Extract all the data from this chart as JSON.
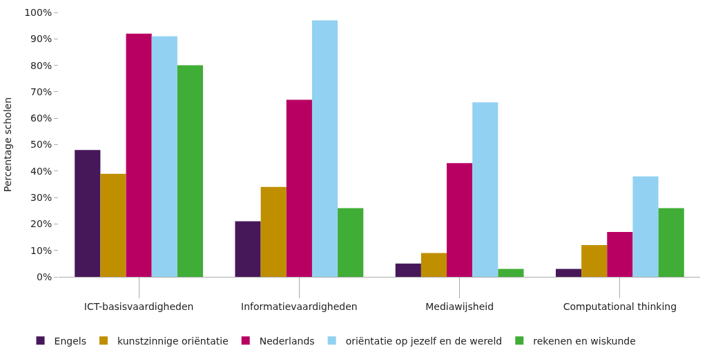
{
  "chart_data": {
    "type": "bar",
    "ylabel": "Percentage scholen",
    "categories": [
      "ICT-basisvaardigheden",
      "Informatievaardigheden",
      "Mediawijsheid",
      "Computational thinking"
    ],
    "series": [
      {
        "name": "Engels",
        "color": "#46185a",
        "values": [
          48,
          21,
          5,
          3
        ]
      },
      {
        "name": "kunstzinnige oriëntatie",
        "color": "#c08f00",
        "values": [
          39,
          34,
          9,
          12
        ]
      },
      {
        "name": "Nederlands",
        "color": "#b80062",
        "values": [
          92,
          67,
          43,
          17
        ]
      },
      {
        "name": "oriëntatie op jezelf en de wereld",
        "color": "#93d1f2",
        "values": [
          91,
          97,
          66,
          38
        ]
      },
      {
        "name": "rekenen en wiskunde",
        "color": "#40ad36",
        "values": [
          80,
          26,
          3,
          26
        ]
      }
    ],
    "ylim": [
      0,
      100
    ],
    "yticks": [
      {
        "value": 0,
        "label": "0%"
      },
      {
        "value": 10,
        "label": "10%"
      },
      {
        "value": 20,
        "label": "20%"
      },
      {
        "value": 30,
        "label": "30%"
      },
      {
        "value": 40,
        "label": "40%"
      },
      {
        "value": 50,
        "label": "50%"
      },
      {
        "value": 60,
        "label": "60%"
      },
      {
        "value": 70,
        "label": "70%"
      },
      {
        "value": 80,
        "label": "80%"
      },
      {
        "value": 90,
        "label": "90%"
      },
      {
        "value": 100,
        "label": "100%"
      }
    ],
    "legend": "bottom"
  }
}
